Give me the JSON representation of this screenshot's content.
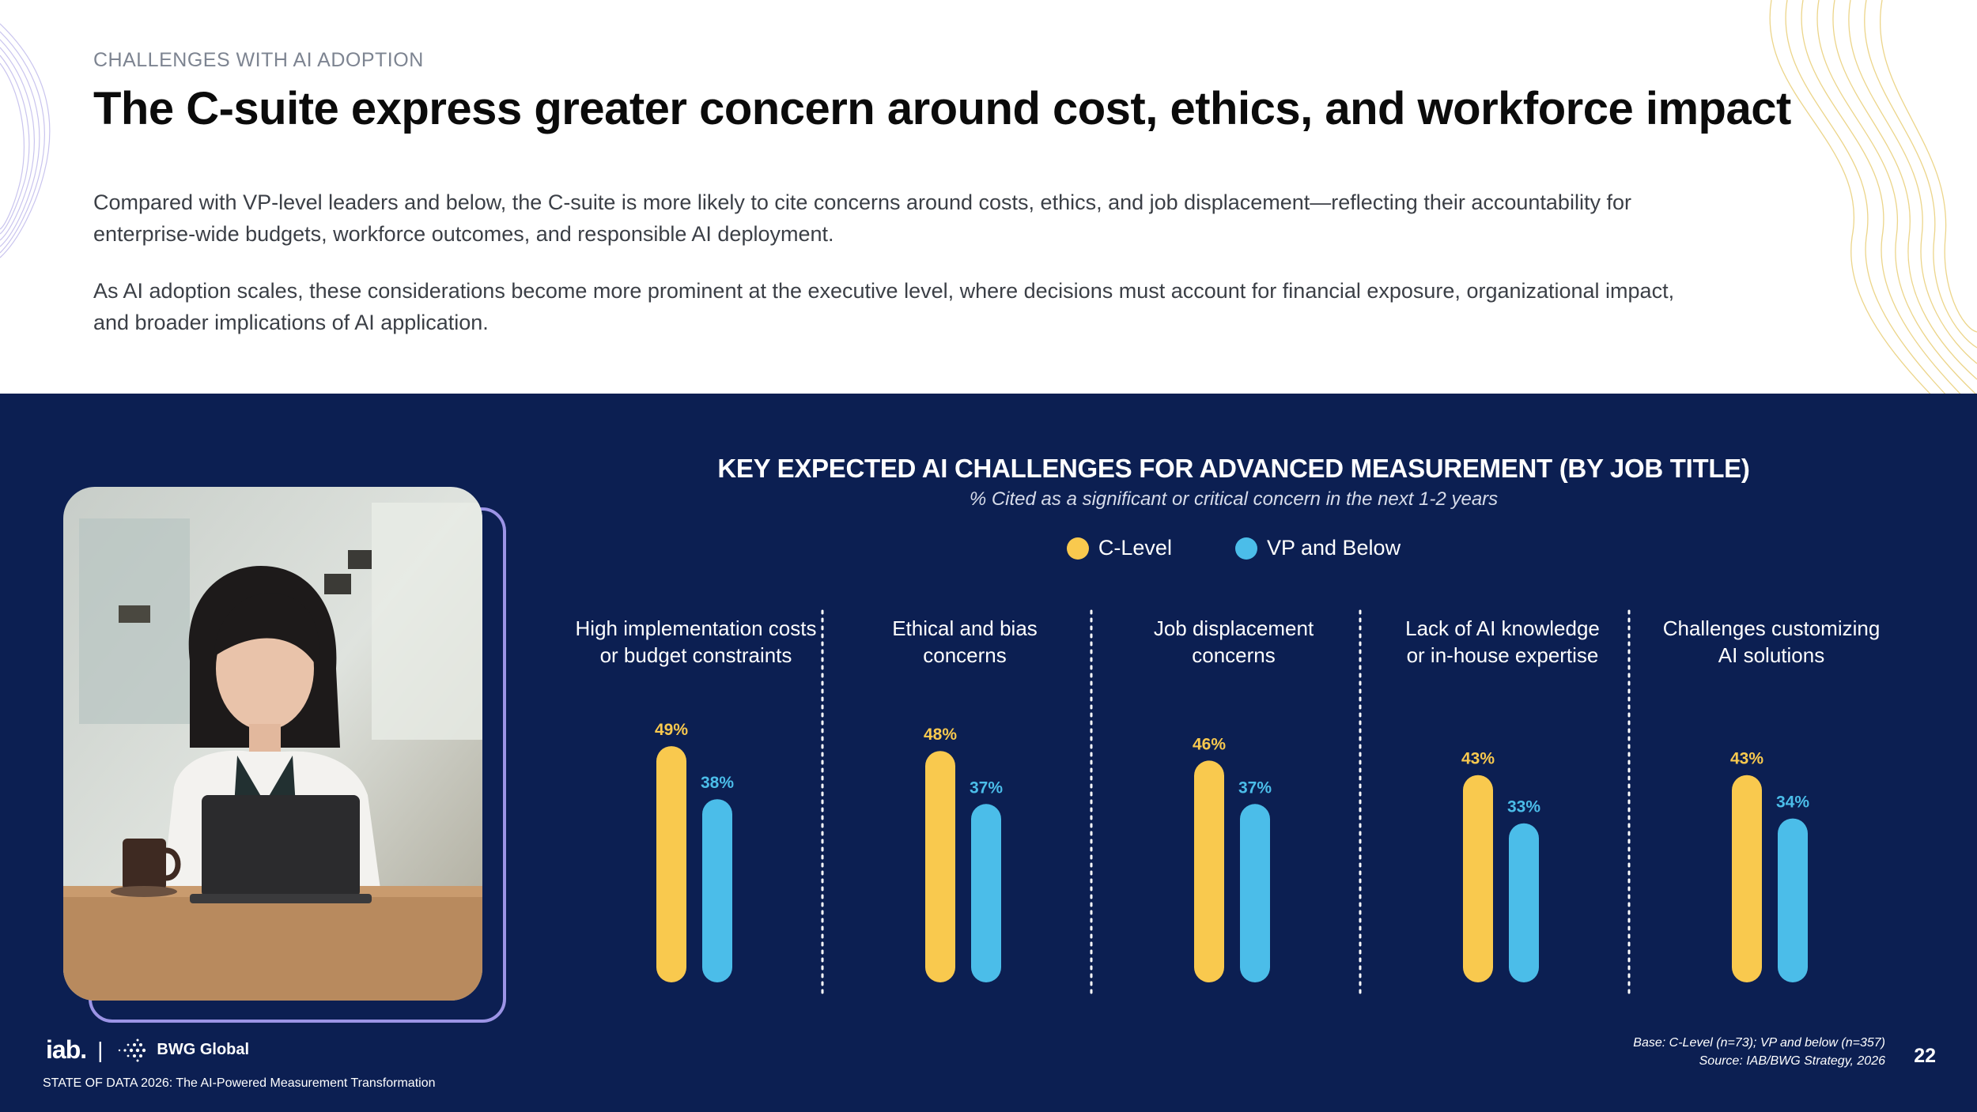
{
  "header": {
    "eyebrow": "CHALLENGES WITH AI ADOPTION",
    "title": "The C-suite express greater concern around cost, ethics, and workforce impact",
    "paragraph_1": "Compared with VP-level leaders and below, the C-suite is more likely to cite concerns around costs, ethics, and job displacement—reflecting their accountability for enterprise-wide budgets, workforce outcomes, and responsible AI deployment.",
    "paragraph_2": "As AI adoption scales, these considerations become more prominent at the executive level, where decisions must account for financial exposure, organizational impact, and broader implications of AI application."
  },
  "chart_data": {
    "type": "bar",
    "title": "KEY EXPECTED AI CHALLENGES FOR ADVANCED MEASUREMENT (BY JOB TITLE)",
    "subtitle": "% Cited as a significant or critical concern in the next 1-2 years",
    "categories": [
      [
        "High implementation costs",
        "or budget constraints"
      ],
      [
        "Ethical and bias",
        "concerns"
      ],
      [
        "Job displacement",
        "concerns"
      ],
      [
        "Lack of AI knowledge",
        "or  in-house expertise"
      ],
      [
        "Challenges customizing",
        "AI solutions"
      ]
    ],
    "series": [
      {
        "name": "C-Level",
        "color": "#f9c94e",
        "values": [
          49,
          48,
          46,
          43,
          43
        ],
        "labels": [
          "49%",
          "48%",
          "46%",
          "43%",
          "43%"
        ]
      },
      {
        "name": "VP and Below",
        "color": "#4bbde9",
        "values": [
          38,
          37,
          37,
          33,
          34
        ],
        "labels": [
          "38%",
          "37%",
          "37%",
          "33%",
          "34%"
        ]
      }
    ],
    "legend": "top-center",
    "grid": false,
    "unit": "%"
  },
  "footer": {
    "logo_iab": "iab.",
    "logo_separator": "|",
    "logo_bwg": "BWG Global",
    "report": "STATE OF DATA 2026: The AI-Powered Measurement Transformation",
    "base": "Base: C-Level (n=73); VP and below (n=357)",
    "source": "Source: IAB/BWG Strategy, 2026",
    "page_number": "22"
  }
}
